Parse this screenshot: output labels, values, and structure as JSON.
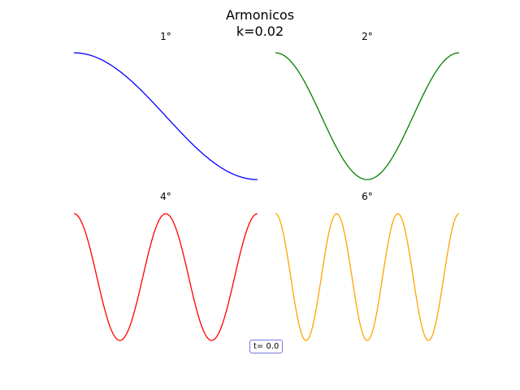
{
  "figure": {
    "title_line1": "Armonicos",
    "title_line2": "k=0.02",
    "time_label": "t= 0.0"
  },
  "chart_data": [
    {
      "type": "line",
      "title": "1°",
      "series": [
        {
          "harmonic": 1,
          "color": "#0000ff"
        }
      ],
      "x_range": [
        0,
        1
      ],
      "ylim": [
        -1,
        1
      ],
      "function": "cos(n*pi*x)",
      "axes_visible": false,
      "grid": false
    },
    {
      "type": "line",
      "title": "2°",
      "series": [
        {
          "harmonic": 2,
          "color": "#008000"
        }
      ],
      "x_range": [
        0,
        1
      ],
      "ylim": [
        -1,
        1
      ],
      "function": "cos(n*pi*x)",
      "axes_visible": false,
      "grid": false
    },
    {
      "type": "line",
      "title": "4°",
      "series": [
        {
          "harmonic": 4,
          "color": "#ff0000"
        }
      ],
      "x_range": [
        0,
        1
      ],
      "ylim": [
        -1,
        1
      ],
      "function": "cos(n*pi*x)",
      "axes_visible": false,
      "grid": false
    },
    {
      "type": "line",
      "title": "6°",
      "series": [
        {
          "harmonic": 6,
          "color": "#ffa500"
        }
      ],
      "x_range": [
        0,
        1
      ],
      "ylim": [
        -1,
        1
      ],
      "function": "cos(n*pi*x)",
      "axes_visible": false,
      "grid": false
    }
  ]
}
